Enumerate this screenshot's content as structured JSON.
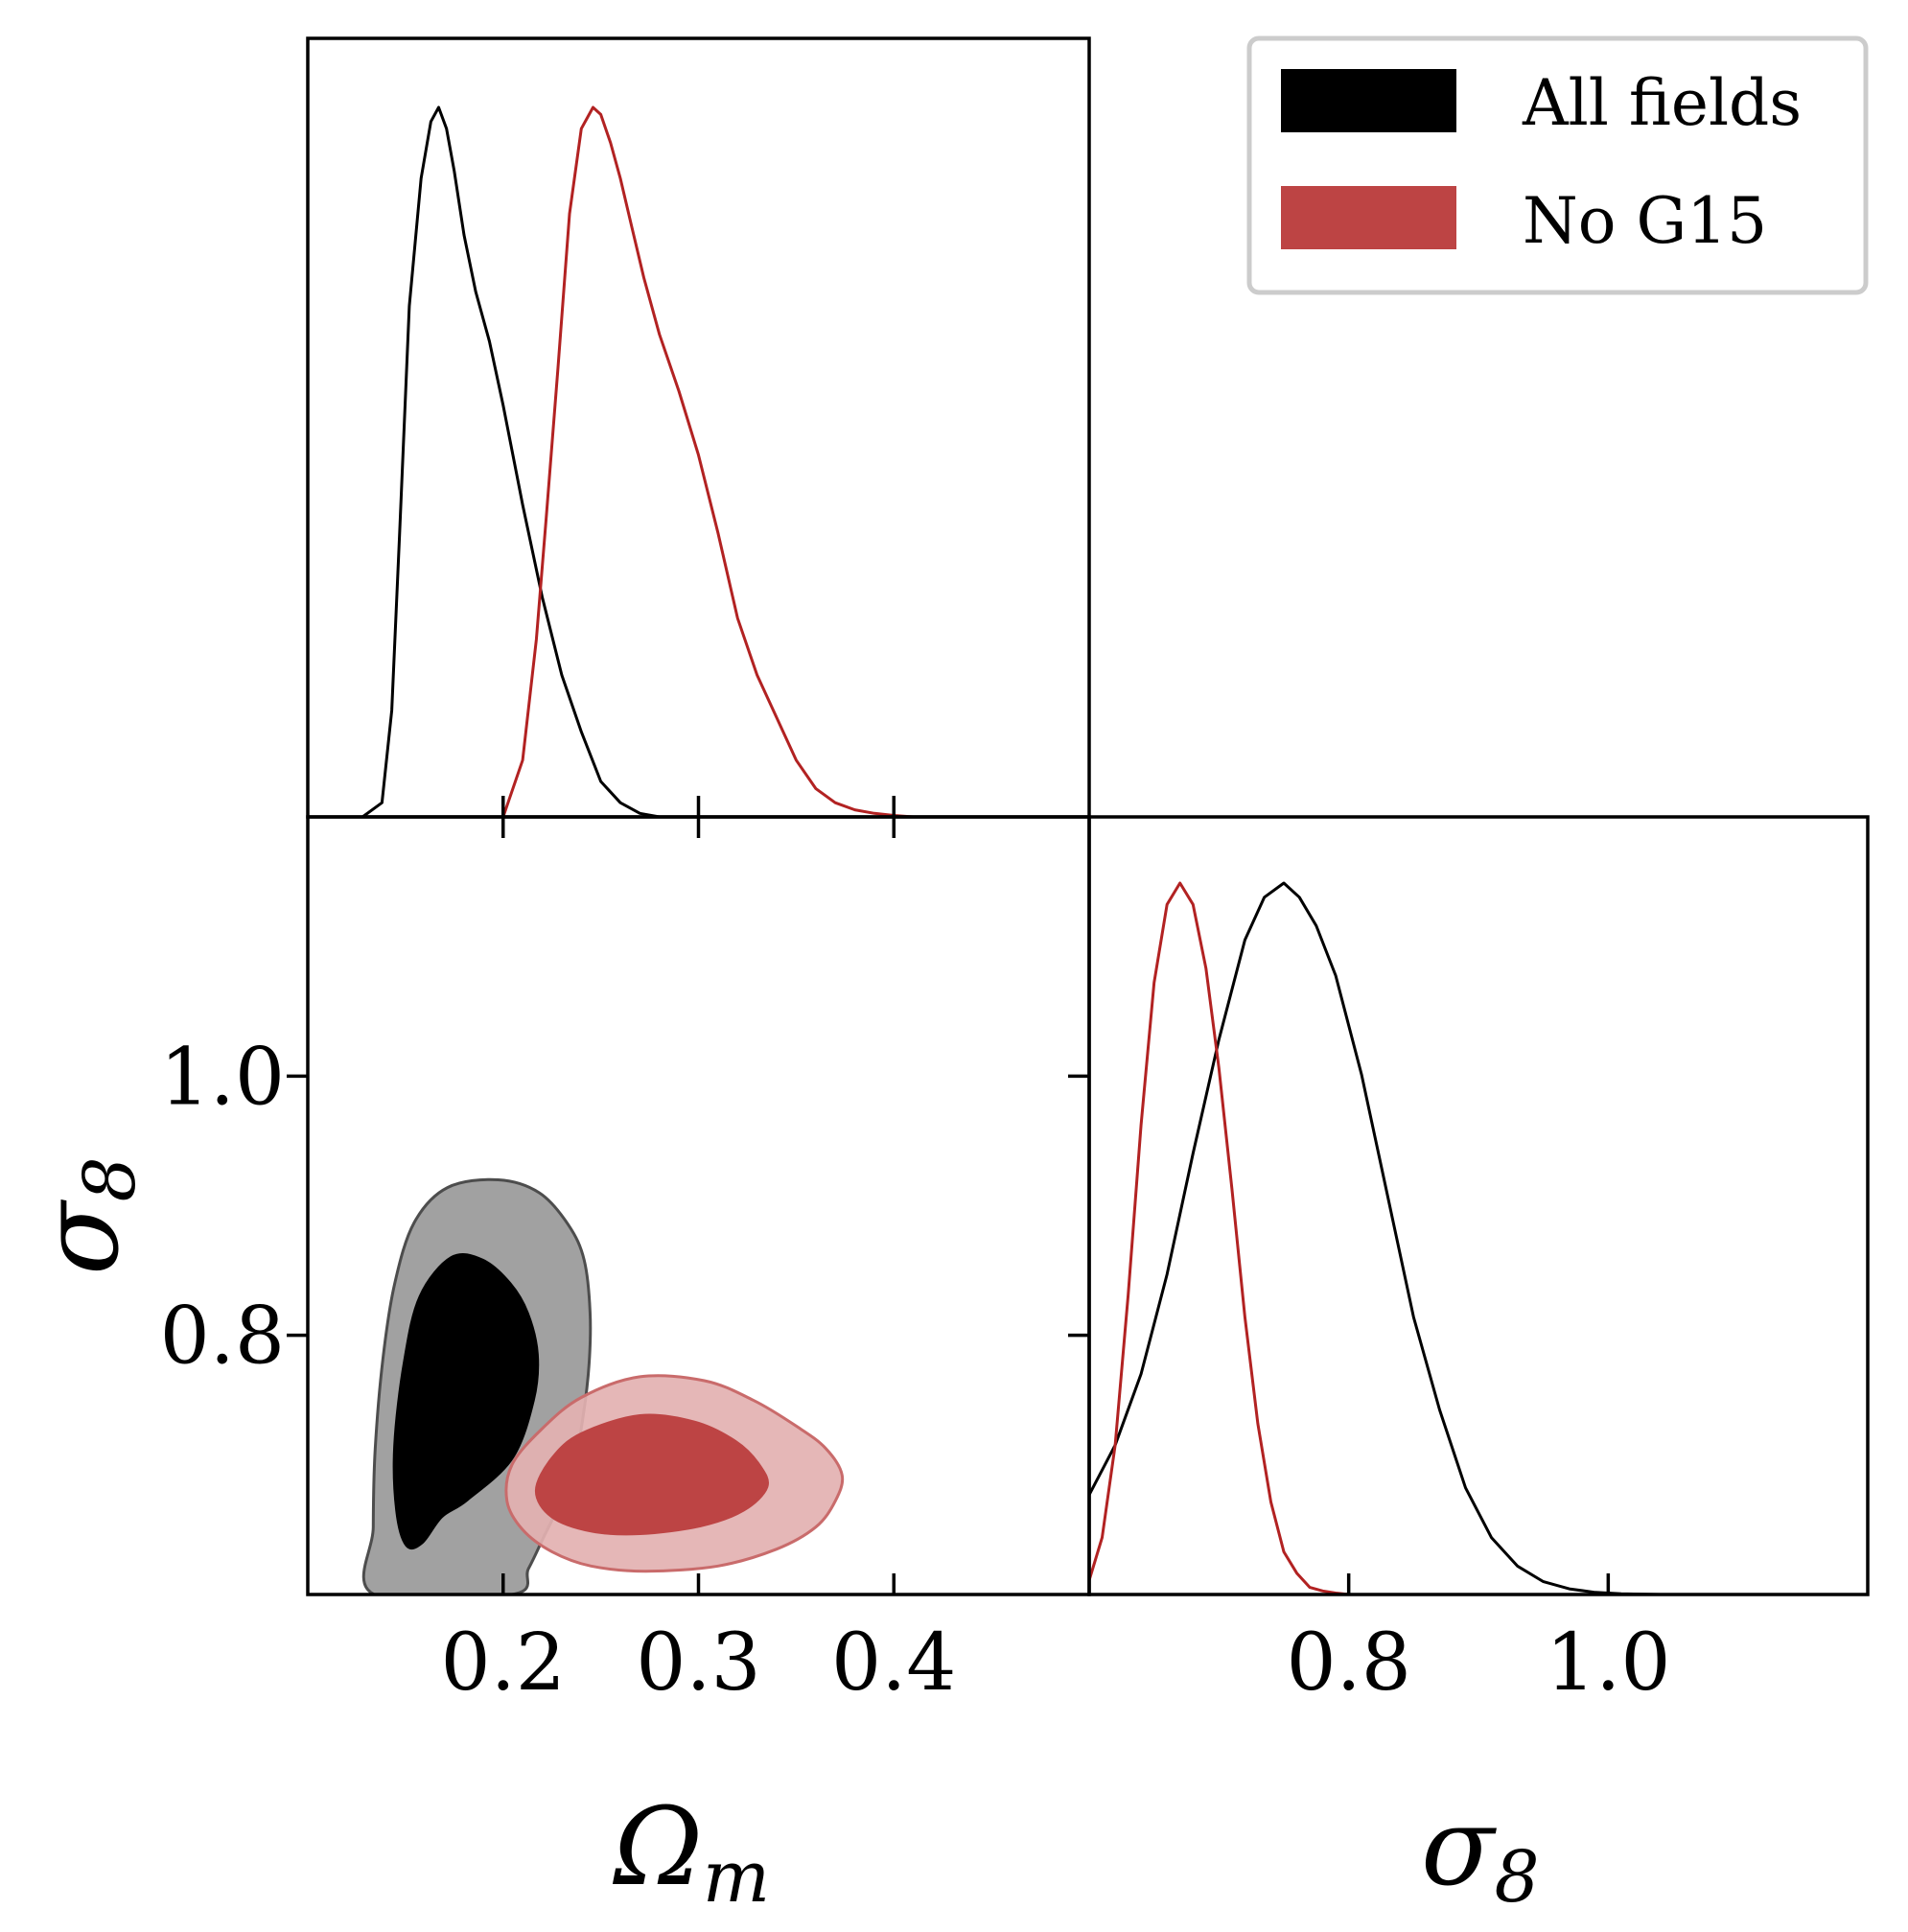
{
  "chart_data": {
    "type": "corner_plot",
    "parameters": [
      "Omega_m",
      "sigma_8"
    ],
    "legend": {
      "placement": "top-right",
      "entries": [
        {
          "label": "All fields",
          "color": "#000000"
        },
        {
          "label": "No G15",
          "color": "#bd4444"
        }
      ]
    },
    "axes": {
      "omega_m": {
        "label_main": "Ω",
        "label_sub": "m",
        "range": [
          0.1,
          0.5
        ],
        "ticks": [
          0.2,
          0.3,
          0.4
        ],
        "tick_labels": [
          "0.2",
          "0.3",
          "0.4"
        ]
      },
      "sigma8_y": {
        "label_main": "σ",
        "label_sub": "8",
        "range": [
          0.6,
          1.2
        ],
        "ticks": [
          0.8,
          1.0
        ],
        "tick_labels": [
          "0.8",
          "1.0"
        ]
      },
      "sigma8_x": {
        "label_main": "σ",
        "label_sub": "8",
        "range": [
          0.6,
          1.2
        ],
        "ticks": [
          0.8,
          1.0
        ],
        "tick_labels": [
          "0.8",
          "1.0"
        ]
      }
    },
    "marginal_omega_m": [
      {
        "name": "All fields",
        "color": "#000000",
        "x": [
          0.128,
          0.138,
          0.143,
          0.147,
          0.152,
          0.158,
          0.163,
          0.167,
          0.171,
          0.175,
          0.18,
          0.186,
          0.193,
          0.2,
          0.21,
          0.22,
          0.23,
          0.24,
          0.25,
          0.26,
          0.27,
          0.28
        ],
        "density": [
          0.0,
          0.02,
          0.15,
          0.4,
          0.72,
          0.9,
          0.98,
          1.0,
          0.97,
          0.91,
          0.82,
          0.74,
          0.67,
          0.58,
          0.44,
          0.31,
          0.2,
          0.12,
          0.05,
          0.02,
          0.005,
          0.0
        ]
      },
      {
        "name": "No G15",
        "color": "#b22222",
        "x": [
          0.2,
          0.21,
          0.217,
          0.222,
          0.228,
          0.234,
          0.24,
          0.246,
          0.25,
          0.255,
          0.26,
          0.266,
          0.272,
          0.28,
          0.29,
          0.3,
          0.31,
          0.32,
          0.33,
          0.34,
          0.35,
          0.36,
          0.37,
          0.38,
          0.39,
          0.4,
          0.41
        ],
        "density": [
          0.0,
          0.08,
          0.25,
          0.42,
          0.63,
          0.85,
          0.97,
          1.0,
          0.99,
          0.95,
          0.9,
          0.83,
          0.76,
          0.68,
          0.6,
          0.51,
          0.4,
          0.28,
          0.2,
          0.14,
          0.08,
          0.04,
          0.02,
          0.01,
          0.005,
          0.002,
          0.0
        ]
      }
    ],
    "marginal_sigma8": [
      {
        "name": "All fields",
        "color": "#000000",
        "x": [
          0.6,
          0.62,
          0.64,
          0.66,
          0.68,
          0.7,
          0.72,
          0.735,
          0.75,
          0.762,
          0.775,
          0.79,
          0.81,
          0.83,
          0.85,
          0.87,
          0.89,
          0.91,
          0.93,
          0.95,
          0.97,
          0.99,
          1.01,
          1.04
        ],
        "density": [
          0.14,
          0.21,
          0.31,
          0.45,
          0.62,
          0.78,
          0.92,
          0.98,
          1.0,
          0.98,
          0.94,
          0.87,
          0.73,
          0.56,
          0.39,
          0.26,
          0.15,
          0.08,
          0.04,
          0.018,
          0.008,
          0.003,
          0.001,
          0.0
        ]
      },
      {
        "name": "No G15",
        "color": "#b22222",
        "x": [
          0.6,
          0.61,
          0.62,
          0.63,
          0.64,
          0.65,
          0.66,
          0.67,
          0.68,
          0.69,
          0.7,
          0.71,
          0.72,
          0.73,
          0.74,
          0.75,
          0.76,
          0.77,
          0.78,
          0.79,
          0.8
        ],
        "density": [
          0.02,
          0.08,
          0.21,
          0.42,
          0.66,
          0.86,
          0.97,
          1.0,
          0.97,
          0.88,
          0.74,
          0.57,
          0.39,
          0.24,
          0.13,
          0.06,
          0.03,
          0.01,
          0.005,
          0.002,
          0.0
        ]
      }
    ],
    "contours_2d": [
      {
        "name": "All fields",
        "level": "95%",
        "fill": "#999999",
        "stroke": "#4d4d4d",
        "points": [
          [
            0.1975,
            0.92
          ],
          [
            0.2185,
            0.91
          ],
          [
            0.2335,
            0.885
          ],
          [
            0.2415,
            0.858
          ],
          [
            0.2445,
            0.818
          ],
          [
            0.244,
            0.778
          ],
          [
            0.241,
            0.738
          ],
          [
            0.236,
            0.698
          ],
          [
            0.229,
            0.67
          ],
          [
            0.221,
            0.645
          ],
          [
            0.213,
            0.62
          ],
          [
            0.2045,
            0.6
          ],
          [
            0.134,
            0.6
          ],
          [
            0.1335,
            0.652
          ],
          [
            0.1345,
            0.712
          ],
          [
            0.1385,
            0.782
          ],
          [
            0.1445,
            0.84
          ],
          [
            0.1545,
            0.887
          ],
          [
            0.1715,
            0.914
          ]
        ]
      },
      {
        "name": "All fields",
        "level": "68%",
        "fill": "#000000",
        "stroke": "#000000",
        "points": [
          [
            0.1735,
            0.86
          ],
          [
            0.1895,
            0.858
          ],
          [
            0.2035,
            0.84
          ],
          [
            0.2125,
            0.817
          ],
          [
            0.2175,
            0.785
          ],
          [
            0.2155,
            0.75
          ],
          [
            0.2045,
            0.705
          ],
          [
            0.1815,
            0.673
          ],
          [
            0.1685,
            0.66
          ],
          [
            0.1585,
            0.64
          ],
          [
            0.1505,
            0.638
          ],
          [
            0.1455,
            0.665
          ],
          [
            0.1445,
            0.715
          ],
          [
            0.1495,
            0.78
          ],
          [
            0.1575,
            0.83
          ]
        ]
      },
      {
        "name": "No G15",
        "level": "95%",
        "fill": "#e3b1b1",
        "stroke": "#c96b6b",
        "points": [
          [
            0.27,
            0.768
          ],
          [
            0.303,
            0.765
          ],
          [
            0.328,
            0.75
          ],
          [
            0.35,
            0.73
          ],
          [
            0.365,
            0.713
          ],
          [
            0.3735,
            0.692
          ],
          [
            0.37,
            0.672
          ],
          [
            0.36,
            0.652
          ],
          [
            0.34,
            0.635
          ],
          [
            0.31,
            0.622
          ],
          [
            0.273,
            0.618
          ],
          [
            0.245,
            0.622
          ],
          [
            0.225,
            0.633
          ],
          [
            0.21,
            0.65
          ],
          [
            0.202,
            0.672
          ],
          [
            0.2045,
            0.7
          ],
          [
            0.22,
            0.728
          ],
          [
            0.24,
            0.752
          ]
        ]
      },
      {
        "name": "No G15",
        "level": "68%",
        "fill": "#bd4444",
        "stroke": "#bd4444",
        "points": [
          [
            0.27,
            0.738
          ],
          [
            0.298,
            0.733
          ],
          [
            0.319,
            0.718
          ],
          [
            0.331,
            0.7
          ],
          [
            0.335,
            0.683
          ],
          [
            0.323,
            0.665
          ],
          [
            0.301,
            0.653
          ],
          [
            0.27,
            0.647
          ],
          [
            0.245,
            0.649
          ],
          [
            0.225,
            0.66
          ],
          [
            0.217,
            0.68
          ],
          [
            0.225,
            0.705
          ],
          [
            0.24,
            0.724
          ]
        ]
      }
    ]
  }
}
